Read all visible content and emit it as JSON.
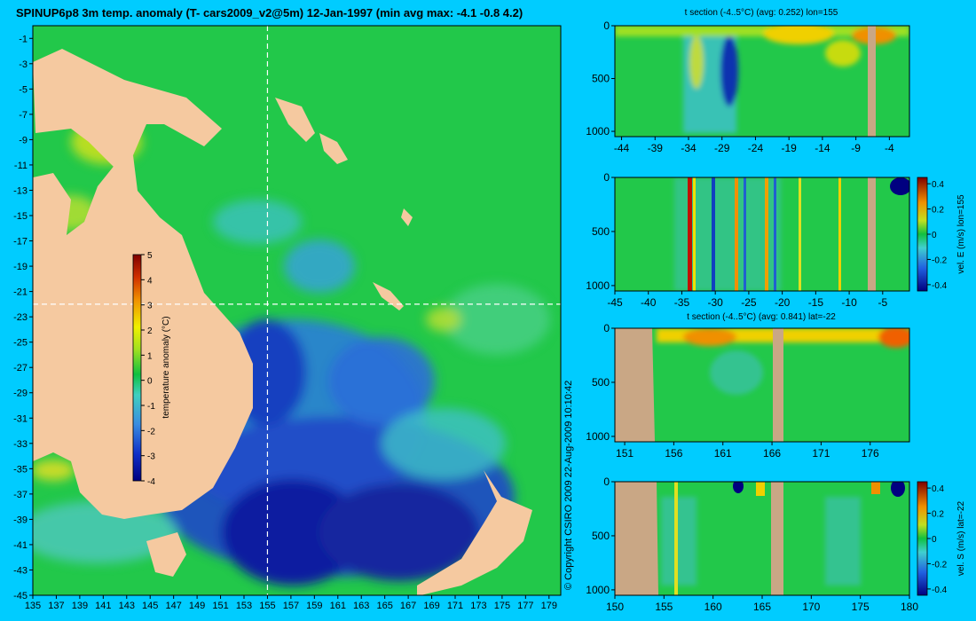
{
  "chart_data": [
    {
      "type": "heatmap",
      "title": "SPINUP6p8 3m temp. anomaly (T- cars2009_v2@5m) 12-Jan-1997 (min avg max: -4.1 -0.8 4.2)",
      "x_ticks": [
        "135",
        "137",
        "139",
        "141",
        "143",
        "145",
        "147",
        "149",
        "151",
        "153",
        "155",
        "157",
        "159",
        "161",
        "163",
        "165",
        "167",
        "169",
        "171",
        "173",
        "175",
        "177",
        "179"
      ],
      "y_ticks": [
        "-1",
        "-3",
        "-5",
        "-7",
        "-9",
        "-11",
        "-13",
        "-15",
        "-17",
        "-19",
        "-21",
        "-23",
        "-25",
        "-27",
        "-29",
        "-31",
        "-33",
        "-35",
        "-37",
        "-39",
        "-41",
        "-43",
        "-45"
      ],
      "xlim": [
        135,
        180
      ],
      "ylim": [
        -45,
        0
      ],
      "section_lines": {
        "lon": 155,
        "lat": -22
      },
      "colorbar": {
        "label": "temperature anomaly (°C)",
        "ticks": [
          "5",
          "4",
          "3",
          "2",
          "1",
          "0",
          "-1",
          "-2",
          "-3",
          "-4"
        ],
        "range": [
          -4,
          5
        ]
      },
      "stats": {
        "min": -4.1,
        "avg": -0.8,
        "max": 4.2
      }
    },
    {
      "type": "heatmap",
      "title": "t section (-4..5°C) (avg: 0.252) lon=155",
      "x_ticks": [
        "-44",
        "-39",
        "-34",
        "-29",
        "-24",
        "-19",
        "-14",
        "-9",
        "-4"
      ],
      "y_ticks": [
        "0",
        "500",
        "1000"
      ],
      "xlim": [
        -45,
        -1
      ],
      "ylim": [
        1050,
        0
      ]
    },
    {
      "type": "heatmap",
      "title": "",
      "x_ticks": [
        "-45",
        "-40",
        "-35",
        "-30",
        "-25",
        "-20",
        "-15",
        "-10",
        "-5"
      ],
      "y_ticks": [
        "0",
        "500",
        "1000"
      ],
      "xlim": [
        -45,
        -1
      ],
      "ylim": [
        1050,
        0
      ],
      "colorbar": {
        "label": "vel. E (m/s) lon=155",
        "ticks": [
          "0.4",
          "0.2",
          "0",
          "-0.2",
          "-0.4"
        ],
        "range": [
          -0.45,
          0.45
        ]
      }
    },
    {
      "type": "heatmap",
      "title": "t section (-4..5°C) (avg: 0.841) lat=-22",
      "x_ticks": [
        "151",
        "156",
        "161",
        "166",
        "171",
        "176"
      ],
      "y_ticks": [
        "0",
        "500",
        "1000"
      ],
      "xlim": [
        150,
        180
      ],
      "ylim": [
        1050,
        0
      ]
    },
    {
      "type": "heatmap",
      "title": "",
      "x_ticks": [
        "150",
        "155",
        "160",
        "165",
        "170",
        "175",
        "180"
      ],
      "y_ticks": [
        "0",
        "500",
        "1000"
      ],
      "xlim": [
        150,
        180
      ],
      "ylim": [
        1050,
        0
      ],
      "colorbar": {
        "label": "vel. S (m/s) lat=-22",
        "ticks": [
          "0.4",
          "0.2",
          "0",
          "-0.2",
          "-0.4"
        ],
        "range": [
          -0.45,
          0.45
        ]
      }
    }
  ],
  "copyright": "© Copyright CSIRO 2009   22-Aug-2009 10:10:42",
  "colors": {
    "background": "#00ccff",
    "land": "#f5c9a0",
    "section_land": "#c9a785"
  }
}
